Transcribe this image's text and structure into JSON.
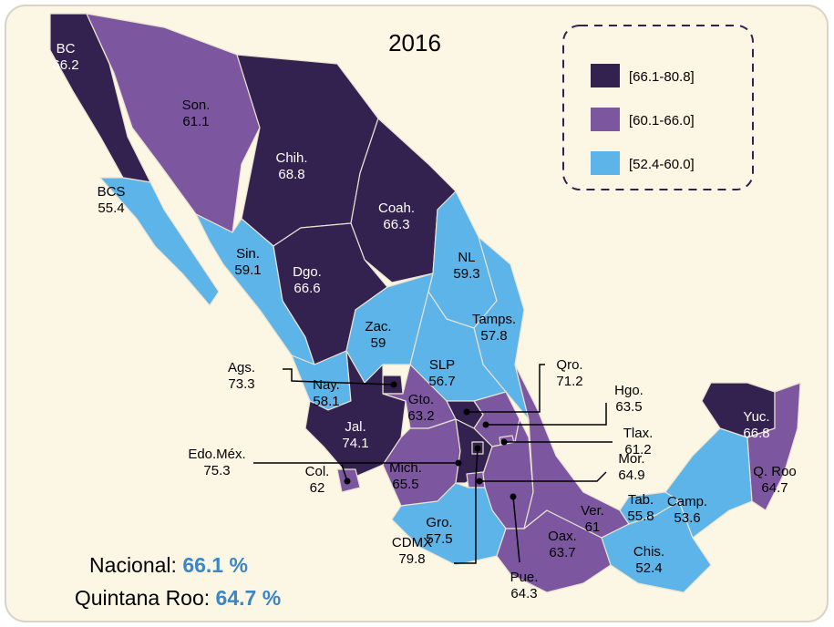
{
  "title": "2016",
  "legend": [
    {
      "label": "[66.1-80.8]",
      "min": 66.1,
      "max": 80.8,
      "color": "#33214f"
    },
    {
      "label": "[60.1-66.0]",
      "min": 60.1,
      "max": 66.0,
      "color": "#7d56a0"
    },
    {
      "label": "[52.4-60.0]",
      "min": 52.4,
      "max": 60.0,
      "color": "#5cb4e8"
    }
  ],
  "states": [
    {
      "name": "BC",
      "value": 66.2
    },
    {
      "name": "Son.",
      "value": 61.1
    },
    {
      "name": "Chih.",
      "value": 68.8
    },
    {
      "name": "Coah.",
      "value": 66.3
    },
    {
      "name": "BCS",
      "value": 55.4
    },
    {
      "name": "Sin.",
      "value": 59.1
    },
    {
      "name": "Dgo.",
      "value": 66.6
    },
    {
      "name": "NL",
      "value": 59.3
    },
    {
      "name": "Tamps.",
      "value": 57.8
    },
    {
      "name": "Zac.",
      "value": 59.0
    },
    {
      "name": "SLP",
      "value": 56.7
    },
    {
      "name": "Nay.",
      "value": 58.1
    },
    {
      "name": "Ags.",
      "value": 73.3
    },
    {
      "name": "Jal.",
      "value": 74.1
    },
    {
      "name": "Col.",
      "value": 62.0
    },
    {
      "name": "Gto.",
      "value": 63.2
    },
    {
      "name": "Qro.",
      "value": 71.2
    },
    {
      "name": "Hgo.",
      "value": 63.5
    },
    {
      "name": "Mich.",
      "value": 65.5
    },
    {
      "name": "Edo.Méx.",
      "value": 75.3
    },
    {
      "name": "CDMX",
      "value": 79.8
    },
    {
      "name": "Tlax.",
      "value": 61.2
    },
    {
      "name": "Mor.",
      "value": 64.9
    },
    {
      "name": "Pue.",
      "value": 64.3
    },
    {
      "name": "Gro.",
      "value": 57.5
    },
    {
      "name": "Oax.",
      "value": 63.7
    },
    {
      "name": "Ver.",
      "value": 61.0
    },
    {
      "name": "Tab.",
      "value": 55.8
    },
    {
      "name": "Chis.",
      "value": 52.4
    },
    {
      "name": "Camp.",
      "value": 53.6
    },
    {
      "name": "Yuc.",
      "value": 66.8
    },
    {
      "name": "Q. Roo",
      "value": 64.7
    }
  ],
  "summary": [
    {
      "label": "Nacional:",
      "value": 66.1,
      "value_label": "66.1 %"
    },
    {
      "label": "Quintana Roo:",
      "value": 64.7,
      "value_label": "64.7 %"
    }
  ]
}
